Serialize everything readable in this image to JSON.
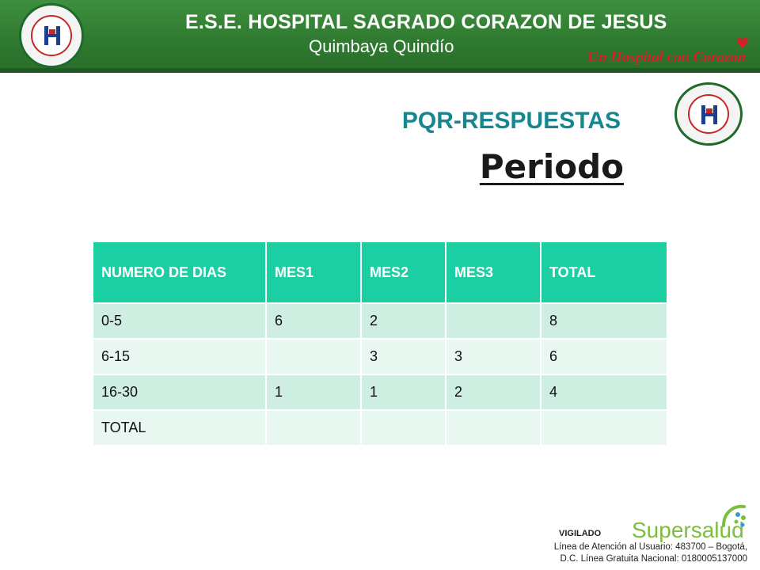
{
  "header": {
    "title": "E.S.E. HOSPITAL SAGRADO CORAZON DE JESUS",
    "subtitle": "Quimbaya Quindío",
    "slogan": "Un Hospital con Corazon",
    "logo_icon": "hospital-seal-icon"
  },
  "main": {
    "heading": "PQR-RESPUESTAS",
    "subheading": "Periodo"
  },
  "table": {
    "columns": [
      "NUMERO DE DIAS",
      "MES1",
      "MES2",
      "MES3",
      "TOTAL"
    ],
    "rows": [
      [
        "0-5",
        "6",
        "2",
        "",
        "8"
      ],
      [
        "6-15",
        "",
        "3",
        "3",
        "6"
      ],
      [
        "16-30",
        "1",
        "1",
        "2",
        "4"
      ],
      [
        "TOTAL",
        "",
        "",
        "",
        ""
      ]
    ]
  },
  "footer": {
    "vigilado": "VIGILADO",
    "brand": "Supersalud",
    "line1": "Línea de Atención al Usuario: 483700 – Bogotá,",
    "line2": "D.C. Línea Gratuita Nacional: 0180005137000"
  },
  "colors": {
    "header_green": "#2f7a30",
    "heading_teal": "#17868e",
    "table_header": "#1ccfa2",
    "row_odd": "#cfeee2",
    "row_even": "#e8f7f0",
    "slogan_red": "#d71f26",
    "supersalud_green": "#7bbf3e"
  }
}
